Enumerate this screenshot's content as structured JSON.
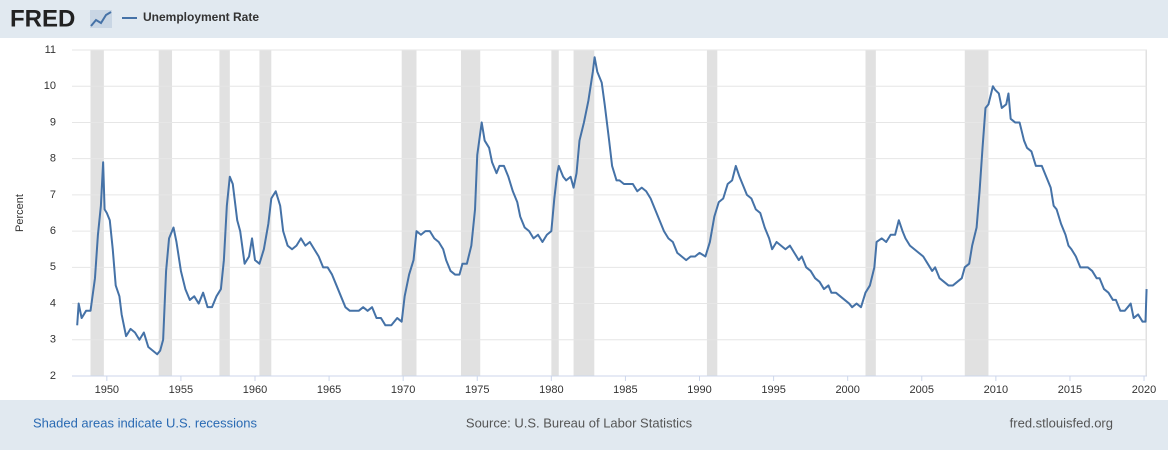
{
  "header": {
    "logo": "FRED"
  },
  "chart_data": {
    "type": "line",
    "y_label": "Percent",
    "x": [
      1948.0,
      1948.1,
      1948.3,
      1948.6,
      1948.9,
      1949.2,
      1949.4,
      1949.6,
      1949.75,
      1949.85,
      1950.0,
      1950.2,
      1950.4,
      1950.6,
      1950.85,
      1951.0,
      1951.3,
      1951.6,
      1951.9,
      1952.2,
      1952.5,
      1952.8,
      1953.1,
      1953.4,
      1953.6,
      1953.8,
      1954.0,
      1954.2,
      1954.5,
      1954.7,
      1955.0,
      1955.3,
      1955.6,
      1955.9,
      1956.2,
      1956.5,
      1956.8,
      1957.1,
      1957.4,
      1957.7,
      1957.9,
      1958.1,
      1958.3,
      1958.5,
      1958.8,
      1959.0,
      1959.3,
      1959.6,
      1959.8,
      1960.0,
      1960.3,
      1960.6,
      1960.9,
      1961.1,
      1961.4,
      1961.7,
      1961.9,
      1962.2,
      1962.5,
      1962.8,
      1963.1,
      1963.4,
      1963.7,
      1964.0,
      1964.3,
      1964.6,
      1964.9,
      1965.2,
      1965.5,
      1965.8,
      1966.1,
      1966.4,
      1966.7,
      1967.0,
      1967.3,
      1967.6,
      1967.9,
      1968.2,
      1968.5,
      1968.8,
      1969.2,
      1969.6,
      1969.9,
      1970.1,
      1970.4,
      1970.7,
      1970.9,
      1971.2,
      1971.5,
      1971.8,
      1972.1,
      1972.4,
      1972.7,
      1972.9,
      1973.2,
      1973.5,
      1973.8,
      1974.0,
      1974.3,
      1974.6,
      1974.85,
      1975.0,
      1975.3,
      1975.5,
      1975.8,
      1976.0,
      1976.3,
      1976.5,
      1976.8,
      1977.1,
      1977.4,
      1977.7,
      1977.9,
      1978.2,
      1978.5,
      1978.8,
      1979.1,
      1979.4,
      1979.7,
      1980.0,
      1980.2,
      1980.4,
      1980.5,
      1980.8,
      1981.0,
      1981.3,
      1981.5,
      1981.7,
      1981.9,
      1982.2,
      1982.5,
      1982.8,
      1982.92,
      1983.1,
      1983.4,
      1983.6,
      1983.9,
      1984.1,
      1984.4,
      1984.6,
      1984.9,
      1985.2,
      1985.5,
      1985.8,
      1986.1,
      1986.4,
      1986.7,
      1987.0,
      1987.3,
      1987.6,
      1987.9,
      1988.2,
      1988.5,
      1988.8,
      1989.1,
      1989.4,
      1989.7,
      1990.0,
      1990.4,
      1990.7,
      1991.0,
      1991.3,
      1991.6,
      1991.9,
      1992.2,
      1992.45,
      1992.7,
      1992.9,
      1993.2,
      1993.5,
      1993.8,
      1994.1,
      1994.4,
      1994.7,
      1994.9,
      1995.2,
      1995.5,
      1995.8,
      1996.1,
      1996.4,
      1996.7,
      1996.9,
      1997.2,
      1997.5,
      1997.8,
      1998.1,
      1998.4,
      1998.7,
      1998.9,
      1999.2,
      1999.5,
      1999.8,
      2000.1,
      2000.3,
      2000.6,
      2000.9,
      2001.2,
      2001.5,
      2001.8,
      2001.95,
      2002.3,
      2002.6,
      2002.9,
      2003.2,
      2003.45,
      2003.7,
      2003.9,
      2004.2,
      2004.5,
      2004.8,
      2005.1,
      2005.4,
      2005.7,
      2005.9,
      2006.2,
      2006.5,
      2006.8,
      2007.1,
      2007.4,
      2007.7,
      2007.9,
      2008.2,
      2008.4,
      2008.7,
      2008.9,
      2009.1,
      2009.3,
      2009.5,
      2009.8,
      2009.95,
      2010.2,
      2010.4,
      2010.7,
      2010.85,
      2011.0,
      2011.3,
      2011.6,
      2011.9,
      2012.1,
      2012.4,
      2012.7,
      2012.9,
      2013.1,
      2013.4,
      2013.7,
      2013.9,
      2014.1,
      2014.4,
      2014.7,
      2014.9,
      2015.1,
      2015.4,
      2015.7,
      2015.9,
      2016.2,
      2016.5,
      2016.8,
      2017.0,
      2017.3,
      2017.6,
      2017.9,
      2018.1,
      2018.4,
      2018.7,
      2018.9,
      2019.1,
      2019.3,
      2019.6,
      2019.9,
      2020.1,
      2020.17
    ],
    "series": [
      {
        "name": "Unemployment Rate",
        "color": "#4572a7",
        "values": [
          3.4,
          4.0,
          3.6,
          3.8,
          3.8,
          4.7,
          5.9,
          6.7,
          7.9,
          6.6,
          6.5,
          6.3,
          5.5,
          4.5,
          4.2,
          3.7,
          3.1,
          3.3,
          3.2,
          3.0,
          3.2,
          2.8,
          2.7,
          2.6,
          2.7,
          3.0,
          4.9,
          5.8,
          6.1,
          5.7,
          4.9,
          4.4,
          4.1,
          4.2,
          4.0,
          4.3,
          3.9,
          3.9,
          4.2,
          4.4,
          5.2,
          6.7,
          7.5,
          7.3,
          6.3,
          6.0,
          5.1,
          5.3,
          5.8,
          5.2,
          5.1,
          5.5,
          6.2,
          6.9,
          7.1,
          6.7,
          6.0,
          5.6,
          5.5,
          5.6,
          5.8,
          5.6,
          5.7,
          5.5,
          5.3,
          5.0,
          5.0,
          4.8,
          4.5,
          4.2,
          3.9,
          3.8,
          3.8,
          3.8,
          3.9,
          3.8,
          3.9,
          3.6,
          3.6,
          3.4,
          3.4,
          3.6,
          3.5,
          4.2,
          4.8,
          5.2,
          6.0,
          5.9,
          6.0,
          6.0,
          5.8,
          5.7,
          5.5,
          5.2,
          4.9,
          4.8,
          4.8,
          5.1,
          5.1,
          5.6,
          6.6,
          8.1,
          9.0,
          8.5,
          8.3,
          7.9,
          7.6,
          7.8,
          7.8,
          7.5,
          7.1,
          6.8,
          6.4,
          6.1,
          6.0,
          5.8,
          5.9,
          5.7,
          5.9,
          6.0,
          6.9,
          7.6,
          7.8,
          7.5,
          7.4,
          7.5,
          7.2,
          7.6,
          8.5,
          9.0,
          9.6,
          10.4,
          10.8,
          10.4,
          10.1,
          9.5,
          8.5,
          7.8,
          7.4,
          7.4,
          7.3,
          7.3,
          7.3,
          7.1,
          7.2,
          7.1,
          6.9,
          6.6,
          6.3,
          6.0,
          5.8,
          5.7,
          5.4,
          5.3,
          5.2,
          5.3,
          5.3,
          5.4,
          5.3,
          5.7,
          6.4,
          6.8,
          6.9,
          7.3,
          7.4,
          7.8,
          7.5,
          7.3,
          7.0,
          6.9,
          6.6,
          6.5,
          6.1,
          5.8,
          5.5,
          5.7,
          5.6,
          5.5,
          5.6,
          5.4,
          5.2,
          5.3,
          5.0,
          4.9,
          4.7,
          4.6,
          4.4,
          4.5,
          4.3,
          4.3,
          4.2,
          4.1,
          4.0,
          3.9,
          4.0,
          3.9,
          4.3,
          4.5,
          5.0,
          5.7,
          5.8,
          5.7,
          5.9,
          5.9,
          6.3,
          6.0,
          5.8,
          5.6,
          5.5,
          5.4,
          5.3,
          5.1,
          4.9,
          5.0,
          4.7,
          4.6,
          4.5,
          4.5,
          4.6,
          4.7,
          5.0,
          5.1,
          5.6,
          6.1,
          7.1,
          8.3,
          9.4,
          9.5,
          10.0,
          9.9,
          9.8,
          9.4,
          9.5,
          9.8,
          9.1,
          9.0,
          9.0,
          8.5,
          8.3,
          8.2,
          7.8,
          7.8,
          7.8,
          7.5,
          7.2,
          6.7,
          6.6,
          6.2,
          5.9,
          5.6,
          5.5,
          5.3,
          5.0,
          5.0,
          5.0,
          4.9,
          4.7,
          4.7,
          4.4,
          4.3,
          4.1,
          4.1,
          3.8,
          3.8,
          3.9,
          4.0,
          3.6,
          3.7,
          3.5,
          3.5,
          4.4
        ]
      }
    ],
    "xlim": [
      1947.65,
      2020.2
    ],
    "ylim": [
      2,
      11
    ],
    "xticks": [
      1950,
      1955,
      1960,
      1965,
      1970,
      1975,
      1980,
      1985,
      1990,
      1995,
      2000,
      2005,
      2010,
      2015,
      2020
    ],
    "yticks": [
      2,
      3,
      4,
      5,
      6,
      7,
      8,
      9,
      10,
      11
    ],
    "grid": true,
    "recessions": [
      [
        1948.9,
        1949.8
      ],
      [
        1953.5,
        1954.4
      ],
      [
        1957.6,
        1958.3
      ],
      [
        1960.3,
        1961.1
      ],
      [
        1969.9,
        1970.9
      ],
      [
        1973.9,
        1975.2
      ],
      [
        1980.0,
        1980.5
      ],
      [
        1981.5,
        1982.9
      ],
      [
        1990.5,
        1991.2
      ],
      [
        2001.2,
        2001.9
      ],
      [
        2007.9,
        2009.5
      ],
      [
        2020.1,
        2020.2
      ]
    ],
    "recession_color": "#e1e1e1"
  },
  "footer": {
    "left": "Shaded areas indicate U.S. recessions",
    "center": "Source: U.S. Bureau of Labor Statistics",
    "right": "fred.stlouisfed.org"
  }
}
